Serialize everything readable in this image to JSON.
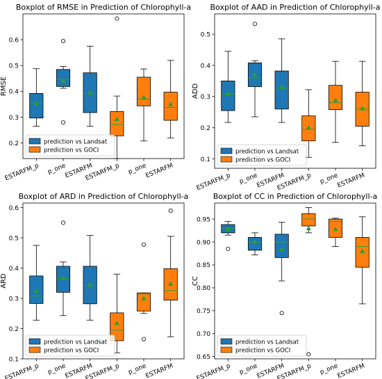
{
  "colors": {
    "landsat": "#1f77b4",
    "goci": "#ff7f0e",
    "median": "#2ca02c",
    "mean": "#2ca02c",
    "outlier": "#000000"
  },
  "chart_data": [
    {
      "type": "boxplot",
      "title": "Boxplot of RMSE in Prediction of Chlorophyll-a",
      "ylabel": "RMSE",
      "ylim": [
        0.14,
        0.7
      ],
      "yticks": [
        "0.2",
        "0.3",
        "0.4",
        "0.5",
        "0.6"
      ],
      "ytick_values": [
        0.2,
        0.3,
        0.4,
        0.5,
        0.6
      ],
      "categories": [
        "ESTARFM_p",
        "p_one",
        "ESTARFM",
        "ESTARFM_p",
        "p_one",
        "ESTARFM"
      ],
      "legend": {
        "placement": "lower left",
        "entries": [
          "prediction vs Landsat",
          "prediction vs GOCI"
        ]
      },
      "boxes": [
        {
          "category": "ESTARFM_p",
          "group": "landsat",
          "whislo": 0.265,
          "q1": 0.297,
          "med": 0.355,
          "q3": 0.392,
          "whishi": 0.488,
          "mean": 0.352,
          "fliers": []
        },
        {
          "category": "p_one",
          "group": "landsat",
          "whislo": 0.412,
          "q1": 0.419,
          "med": 0.447,
          "q3": 0.485,
          "whishi": 0.497,
          "mean": 0.442,
          "fliers": [
            0.595,
            0.28
          ]
        },
        {
          "category": "ESTARFM",
          "group": "landsat",
          "whislo": 0.265,
          "q1": 0.318,
          "med": 0.392,
          "q3": 0.472,
          "whishi": 0.575,
          "mean": 0.395,
          "fliers": []
        },
        {
          "category": "ESTARFM_p",
          "group": "goci",
          "whislo": 0.14,
          "q1": 0.228,
          "med": 0.272,
          "q3": 0.322,
          "whishi": 0.382,
          "mean": 0.293,
          "fliers": [
            0.682
          ]
        },
        {
          "category": "p_one",
          "group": "goci",
          "whislo": 0.208,
          "q1": 0.344,
          "med": 0.37,
          "q3": 0.455,
          "whishi": 0.487,
          "mean": 0.377,
          "fliers": []
        },
        {
          "category": "ESTARFM",
          "group": "goci",
          "whislo": 0.22,
          "q1": 0.288,
          "med": 0.338,
          "q3": 0.397,
          "whishi": 0.52,
          "mean": 0.35,
          "fliers": []
        }
      ]
    },
    {
      "type": "boxplot",
      "title": "Boxplot of AAD in Prediction of Chlorophyll-a",
      "ylabel": "ADD",
      "ylim": [
        0.07,
        0.565
      ],
      "yticks": [
        "0.1",
        "0.2",
        "0.3",
        "0.4",
        "0.5"
      ],
      "ytick_values": [
        0.1,
        0.2,
        0.3,
        0.4,
        0.5
      ],
      "categories": [
        "ESTARFM_p",
        "p_one",
        "ESTARFM",
        "ESTARFM_p",
        "p_one",
        "ESTARFM"
      ],
      "legend": {
        "placement": "lower left",
        "entries": [
          "prediction vs Landsat",
          "prediction vs GOCI"
        ]
      },
      "boxes": [
        {
          "category": "ESTARFM_p",
          "group": "landsat",
          "whislo": 0.217,
          "q1": 0.255,
          "med": 0.308,
          "q3": 0.35,
          "whishi": 0.445,
          "mean": 0.31,
          "fliers": []
        },
        {
          "category": "p_one",
          "group": "landsat",
          "whislo": 0.235,
          "q1": 0.332,
          "med": 0.36,
          "q3": 0.408,
          "whishi": 0.415,
          "mean": 0.37,
          "fliers": [
            0.533
          ]
        },
        {
          "category": "ESTARFM",
          "group": "landsat",
          "whislo": 0.217,
          "q1": 0.26,
          "med": 0.327,
          "q3": 0.382,
          "whishi": 0.485,
          "mean": 0.33,
          "fliers": []
        },
        {
          "category": "ESTARFM_p",
          "group": "goci",
          "whislo": 0.105,
          "q1": 0.158,
          "med": 0.195,
          "q3": 0.238,
          "whishi": 0.322,
          "mean": 0.2,
          "fliers": []
        },
        {
          "category": "p_one",
          "group": "goci",
          "whislo": 0.153,
          "q1": 0.258,
          "med": 0.28,
          "q3": 0.336,
          "whishi": 0.413,
          "mean": 0.288,
          "fliers": []
        },
        {
          "category": "ESTARFM",
          "group": "goci",
          "whislo": 0.142,
          "q1": 0.205,
          "med": 0.26,
          "q3": 0.314,
          "whishi": 0.413,
          "mean": 0.262,
          "fliers": []
        }
      ]
    },
    {
      "type": "boxplot",
      "title": "Boxplot of ARD in Prediction of Chlorophyll-a",
      "ylabel": "ARD",
      "ylim": [
        0.1,
        0.615
      ],
      "yticks": [
        "0.1",
        "0.2",
        "0.3",
        "0.4",
        "0.5",
        "0.6"
      ],
      "ytick_values": [
        0.1,
        0.2,
        0.3,
        0.4,
        0.5,
        0.6
      ],
      "categories": [
        "ESTARFM_p",
        "p_one",
        "ESTARFM",
        "ESTARFM_p",
        "p_one",
        "ESTARFM"
      ],
      "legend": {
        "placement": "lower left",
        "entries": [
          "prediction vs Landsat",
          "prediction vs GOCI"
        ]
      },
      "boxes": [
        {
          "category": "ESTARFM_p",
          "group": "landsat",
          "whislo": 0.228,
          "q1": 0.283,
          "med": 0.308,
          "q3": 0.374,
          "whishi": 0.475,
          "mean": 0.325,
          "fliers": []
        },
        {
          "category": "p_one",
          "group": "landsat",
          "whislo": 0.243,
          "q1": 0.32,
          "med": 0.365,
          "q3": 0.406,
          "whishi": 0.42,
          "mean": 0.368,
          "fliers": [
            0.55
          ]
        },
        {
          "category": "ESTARFM",
          "group": "landsat",
          "whislo": 0.228,
          "q1": 0.282,
          "med": 0.342,
          "q3": 0.406,
          "whishi": 0.508,
          "mean": 0.345,
          "fliers": []
        },
        {
          "category": "ESTARFM_p",
          "group": "goci",
          "whislo": 0.12,
          "q1": 0.16,
          "med": 0.195,
          "q3": 0.252,
          "whishi": 0.38,
          "mean": 0.218,
          "fliers": []
        },
        {
          "category": "p_one",
          "group": "goci",
          "whislo": 0.25,
          "q1": 0.258,
          "med": 0.315,
          "q3": 0.318,
          "whishi": 0.318,
          "mean": 0.3,
          "fliers": [
            0.478,
            0.165
          ]
        },
        {
          "category": "ESTARFM",
          "group": "goci",
          "whislo": 0.173,
          "q1": 0.294,
          "med": 0.326,
          "q3": 0.398,
          "whishi": 0.505,
          "mean": 0.348,
          "fliers": [
            0.59
          ]
        }
      ]
    },
    {
      "type": "boxplot",
      "title": "Boxplot of CC in Prediction of Chlorophyll-a",
      "ylabel": "CC",
      "ylim": [
        0.645,
        0.985
      ],
      "yticks": [
        "0.65",
        "0.70",
        "0.75",
        "0.80",
        "0.85",
        "0.90",
        "0.95"
      ],
      "ytick_values": [
        0.65,
        0.7,
        0.75,
        0.8,
        0.85,
        0.9,
        0.95
      ],
      "categories": [
        "ESTARFM_p",
        "p_one",
        "ESTARFM",
        "ESTARFM_p",
        "p_one",
        "ESTARFM"
      ],
      "legend": {
        "placement": "lower left",
        "entries": [
          "prediction vs Landsat",
          "prediction vs GOCI"
        ]
      },
      "boxes": [
        {
          "category": "ESTARFM_p",
          "group": "landsat",
          "whislo": 0.915,
          "q1": 0.92,
          "med": 0.93,
          "q3": 0.938,
          "whishi": 0.945,
          "mean": 0.928,
          "fliers": [
            0.885
          ]
        },
        {
          "category": "p_one",
          "group": "landsat",
          "whislo": 0.872,
          "q1": 0.882,
          "med": 0.9,
          "q3": 0.91,
          "whishi": 0.92,
          "mean": 0.9,
          "fliers": []
        },
        {
          "category": "ESTARFM",
          "group": "landsat",
          "whislo": 0.815,
          "q1": 0.866,
          "med": 0.9,
          "q3": 0.917,
          "whishi": 0.943,
          "mean": 0.884,
          "fliers": [
            0.745
          ]
        },
        {
          "category": "ESTARFM_p",
          "group": "goci",
          "whislo": 0.92,
          "q1": 0.935,
          "med": 0.95,
          "q3": 0.962,
          "whishi": 0.975,
          "mean": 0.93,
          "fliers": [
            0.655
          ]
        },
        {
          "category": "p_one",
          "group": "goci",
          "whislo": 0.89,
          "q1": 0.91,
          "med": 0.945,
          "q3": 0.95,
          "whishi": 0.952,
          "mean": 0.928,
          "fliers": []
        },
        {
          "category": "ESTARFM",
          "group": "goci",
          "whislo": 0.765,
          "q1": 0.845,
          "med": 0.89,
          "q3": 0.91,
          "whishi": 0.955,
          "mean": 0.88,
          "fliers": []
        }
      ]
    }
  ]
}
